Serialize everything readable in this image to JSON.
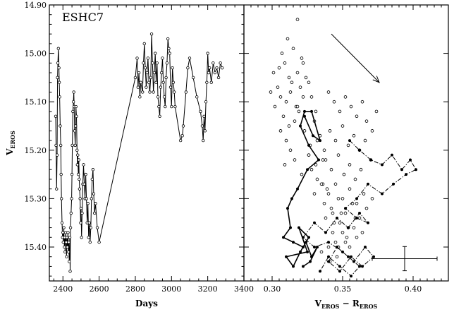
{
  "chart_data": [
    {
      "type": "line",
      "panel": "left",
      "title": "ESHC7",
      "xlabel": "Days",
      "ylabel": "V",
      "ylabel_sub": "EROS",
      "xlim": [
        2325,
        3400
      ],
      "ylim": [
        15.47,
        14.9
      ],
      "y_inverted": true,
      "xticks": [
        2400,
        2600,
        2800,
        3000,
        3200,
        3400
      ],
      "yticks": [
        14.9,
        15.0,
        15.1,
        15.2,
        15.3,
        15.4
      ],
      "yticklabels": [
        "14.90",
        "15.00",
        "15.10",
        "15.20",
        "15.30",
        "15.40"
      ],
      "marker": "open-circle",
      "series": [
        {
          "x": [
            2360,
            2362,
            2365,
            2368,
            2370,
            2372,
            2375,
            2378,
            2380,
            2382,
            2385,
            2388,
            2390,
            2392,
            2395,
            2398,
            2400,
            2402,
            2405,
            2408,
            2410,
            2412,
            2415,
            2418,
            2420,
            2422,
            2425,
            2428,
            2430,
            2432,
            2435,
            2438,
            2440,
            2442,
            2445,
            2448,
            2450,
            2452,
            2455,
            2458,
            2460,
            2462,
            2465,
            2468,
            2470,
            2472,
            2475,
            2478,
            2480,
            2482,
            2485,
            2488,
            2490,
            2492,
            2495,
            2498,
            2500,
            2503,
            2506,
            2510,
            2514,
            2518,
            2522,
            2526,
            2530,
            2534,
            2538,
            2542,
            2546,
            2550,
            2554,
            2558,
            2562,
            2566,
            2570,
            2575,
            2580,
            2590,
            2600,
            2800,
            2810,
            2815,
            2820,
            2825,
            2830,
            2840,
            2845,
            2850,
            2855,
            2860,
            2865,
            2870,
            2875,
            2880,
            2885,
            2890,
            2895,
            2900,
            2905,
            2910,
            2915,
            2920,
            2925,
            2930,
            2935,
            2940,
            2945,
            2950,
            2955,
            2960,
            2965,
            2970,
            2975,
            2980,
            2985,
            2990,
            2995,
            3000,
            3005,
            3010,
            3015,
            3020,
            3050,
            3060,
            3065,
            3080,
            3090,
            3100,
            3120,
            3140,
            3160,
            3170,
            3175,
            3180,
            3185,
            3190,
            3195,
            3200,
            3205,
            3210,
            3220,
            3230,
            3240,
            3250,
            3260,
            3270,
            3280
          ],
          "y": [
            15.13,
            15.19,
            15.28,
            15.21,
            15.05,
            15.02,
            14.99,
            15.03,
            15.06,
            15.09,
            15.15,
            15.19,
            15.25,
            15.3,
            15.35,
            15.38,
            15.37,
            15.39,
            15.36,
            15.4,
            15.38,
            15.41,
            15.37,
            15.39,
            15.42,
            15.38,
            15.4,
            15.37,
            15.41,
            15.39,
            15.43,
            15.38,
            15.45,
            15.36,
            15.33,
            15.3,
            15.25,
            15.19,
            15.12,
            15.1,
            15.08,
            15.11,
            15.16,
            15.19,
            15.15,
            15.11,
            15.13,
            15.2,
            15.23,
            15.21,
            15.25,
            15.22,
            15.26,
            15.28,
            15.3,
            15.35,
            15.32,
            15.38,
            15.33,
            15.27,
            15.23,
            15.27,
            15.3,
            15.25,
            15.3,
            15.35,
            15.31,
            15.38,
            15.35,
            15.39,
            15.36,
            15.3,
            15.26,
            15.24,
            15.29,
            15.33,
            15.31,
            15.36,
            15.39,
            15.05,
            15.01,
            15.07,
            15.04,
            15.09,
            15.06,
            15.08,
            15.02,
            14.98,
            15.03,
            15.07,
            15.04,
            15.01,
            15.06,
            15.08,
            15.05,
            14.96,
            15.02,
            15.08,
            15.04,
            15.0,
            15.06,
            15.02,
            15.09,
            15.11,
            15.13,
            15.07,
            15.04,
            15.01,
            15.06,
            15.09,
            15.11,
            15.05,
            15.02,
            14.97,
            14.99,
            15.0,
            15.07,
            15.11,
            15.03,
            15.06,
            15.08,
            15.11,
            15.18,
            15.17,
            15.15,
            15.08,
            15.03,
            15.01,
            15.05,
            15.09,
            15.12,
            15.15,
            15.18,
            15.13,
            15.16,
            15.1,
            15.06,
            15.0,
            15.04,
            15.03,
            15.06,
            15.02,
            15.04,
            15.03,
            15.05,
            15.02,
            15.03
          ]
        }
      ]
    },
    {
      "type": "scatter",
      "panel": "right",
      "xlabel": "V",
      "xlabel_sub": "EROS",
      "xlabel_mid": " − R",
      "xlabel_sub2": "EROS",
      "xlim": [
        0.28,
        0.425
      ],
      "ylim": [
        15.47,
        14.9
      ],
      "y_inverted": true,
      "xticks": [
        0.3,
        0.35,
        0.4
      ],
      "xticklabels": [
        "0.30",
        "0.35",
        "0.40"
      ],
      "series": [
        {
          "style": "open-circles",
          "x": [
            0.318,
            0.311,
            0.307,
            0.305,
            0.312,
            0.315,
            0.321,
            0.304,
            0.301,
            0.309,
            0.306,
            0.314,
            0.318,
            0.322,
            0.326,
            0.31,
            0.313,
            0.317,
            0.32,
            0.324,
            0.328,
            0.331,
            0.308,
            0.312,
            0.316,
            0.302,
            0.299,
            0.306,
            0.31,
            0.319,
            0.323,
            0.327,
            0.33,
            0.334,
            0.337,
            0.313,
            0.309,
            0.316,
            0.321,
            0.326,
            0.332,
            0.336,
            0.34,
            0.344,
            0.348,
            0.352,
            0.356,
            0.36,
            0.364,
            0.367,
            0.371,
            0.374,
            0.341,
            0.345,
            0.35,
            0.354,
            0.358,
            0.362,
            0.366,
            0.37,
            0.338,
            0.342,
            0.347,
            0.351,
            0.355,
            0.359,
            0.363,
            0.336,
            0.34,
            0.345,
            0.35,
            0.355,
            0.36,
            0.365,
            0.342,
            0.347,
            0.352,
            0.357,
            0.362,
            0.367,
            0.371,
            0.344,
            0.349,
            0.354,
            0.359,
            0.364,
            0.338,
            0.343,
            0.348,
            0.353,
            0.358,
            0.345,
            0.35,
            0.355,
            0.36,
            0.34,
            0.346,
            0.352,
            0.335,
            0.341,
            0.347,
            0.33,
            0.337,
            0.343,
            0.332,
            0.339,
            0.328,
            0.335,
            0.326,
            0.331,
            0.318,
            0.322
          ],
          "y": [
            14.93,
            14.97,
            15.0,
            15.03,
            15.05,
            14.99,
            15.01,
            15.07,
            15.04,
            15.02,
            15.09,
            15.06,
            15.04,
            15.02,
            15.06,
            15.1,
            15.08,
            15.11,
            15.07,
            15.05,
            15.09,
            15.12,
            15.13,
            15.15,
            15.14,
            15.11,
            15.08,
            15.16,
            15.18,
            15.12,
            15.16,
            15.19,
            15.14,
            15.17,
            15.2,
            15.2,
            15.23,
            15.22,
            15.25,
            15.21,
            15.18,
            15.22,
            15.08,
            15.1,
            15.12,
            15.09,
            15.11,
            15.13,
            15.1,
            15.14,
            15.16,
            15.12,
            15.16,
            15.18,
            15.15,
            15.19,
            15.17,
            15.2,
            15.18,
            15.22,
            15.22,
            15.24,
            15.21,
            15.25,
            15.23,
            15.26,
            15.24,
            15.27,
            15.29,
            15.27,
            15.3,
            15.28,
            15.31,
            15.29,
            15.32,
            15.3,
            15.33,
            15.31,
            15.34,
            15.32,
            15.3,
            15.35,
            15.33,
            15.36,
            15.34,
            15.37,
            15.34,
            15.37,
            15.35,
            15.38,
            15.36,
            15.39,
            15.37,
            15.4,
            15.38,
            15.4,
            15.42,
            15.39,
            15.41,
            15.43,
            15.4,
            15.29,
            15.31,
            15.33,
            15.26,
            15.28,
            15.24,
            15.27,
            15.21,
            15.23,
            15.11,
            15.09
          ]
        },
        {
          "style": "filled-circles-solid-line",
          "x": [
            0.323,
            0.329,
            0.334,
            0.328,
            0.323,
            0.32,
            0.326,
            0.333,
            0.325,
            0.318,
            0.314,
            0.311,
            0.313,
            0.308,
            0.315,
            0.322,
            0.326,
            0.319,
            0.325,
            0.31,
            0.315,
            0.32,
            0.324,
            0.328,
            0.332,
            0.327,
            0.322
          ],
          "y": [
            15.13,
            15.17,
            15.18,
            15.12,
            15.12,
            15.15,
            15.19,
            15.22,
            15.24,
            15.28,
            15.3,
            15.32,
            15.36,
            15.38,
            15.39,
            15.4,
            15.38,
            15.36,
            15.41,
            15.42,
            15.44,
            15.41,
            15.39,
            15.42,
            15.4,
            15.43,
            15.44
          ]
        },
        {
          "style": "filled-circles-dash-dot",
          "x": [
            0.355,
            0.362,
            0.37,
            0.378,
            0.385,
            0.392,
            0.398,
            0.402,
            0.395,
            0.386,
            0.378,
            0.368,
            0.36,
            0.352,
            0.36,
            0.368,
            0.362,
            0.354,
            0.346,
            0.338,
            0.33,
            0.322,
            0.33,
            0.34,
            0.35,
            0.358,
            0.366,
            0.372,
            0.364,
            0.356,
            0.348,
            0.34,
            0.346,
            0.354,
            0.362,
            0.356,
            0.348,
            0.34,
            0.334
          ],
          "y": [
            15.18,
            15.2,
            15.22,
            15.23,
            15.21,
            15.24,
            15.22,
            15.24,
            15.25,
            15.27,
            15.29,
            15.27,
            15.3,
            15.32,
            15.34,
            15.35,
            15.33,
            15.36,
            15.34,
            15.37,
            15.35,
            15.38,
            15.4,
            15.39,
            15.41,
            15.43,
            15.4,
            15.42,
            15.44,
            15.42,
            15.45,
            15.43,
            15.4,
            15.42,
            15.44,
            15.46,
            15.44,
            15.42,
            15.45
          ]
        }
      ],
      "arrow": {
        "x1": 0.342,
        "y1": 14.96,
        "x2": 0.376,
        "y2": 15.06
      },
      "error_bar": {
        "x": 0.394,
        "y": 15.424,
        "dx": 0.023,
        "dy": 0.025
      }
    }
  ]
}
